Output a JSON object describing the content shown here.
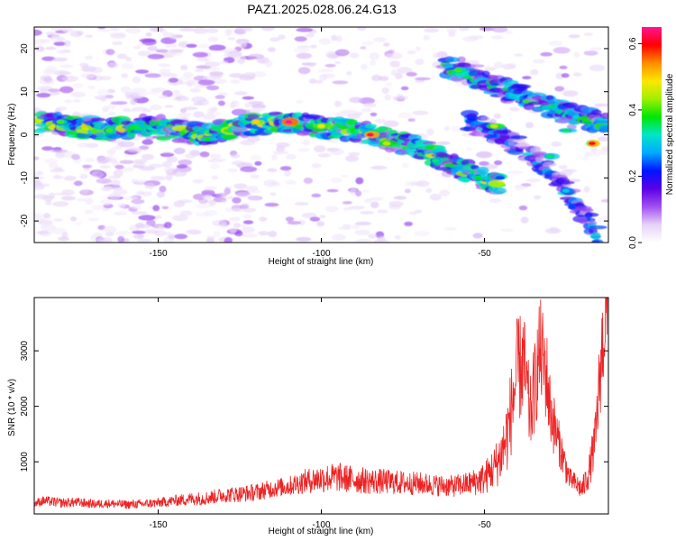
{
  "title": "PAZ1.2025.028.06.24.G13",
  "chart_data": [
    {
      "type": "heatmap",
      "xlabel": "Height of straight line (km)",
      "ylabel": "Frequency (Hz)",
      "xlim": [
        -188,
        -12
      ],
      "ylim": [
        -25,
        25
      ],
      "xticks": [
        -150,
        -100,
        -50
      ],
      "yticks": [
        -20,
        -10,
        0,
        10,
        20
      ],
      "colorbar": {
        "label": "Normalized spectral amplitude",
        "range": [
          0.0,
          0.65
        ],
        "ticks": [
          "0.0",
          "0.2",
          "0.4",
          "0.6"
        ],
        "tick_values": [
          0.0,
          0.2,
          0.4,
          0.6
        ],
        "colormap": [
          "#ffffff",
          "#e6d2f7",
          "#a050f0",
          "#5a00e6",
          "#0014ff",
          "#00aaff",
          "#00e6c8",
          "#00e600",
          "#a0f000",
          "#ffe600",
          "#ff8c00",
          "#ff0000",
          "#ff1493"
        ]
      },
      "ridges": [
        {
          "name": "main",
          "points": [
            [
              -186,
              3
            ],
            [
              -175,
              2
            ],
            [
              -165,
              1
            ],
            [
              -155,
              2
            ],
            [
              -145,
              1
            ],
            [
              -135,
              0
            ],
            [
              -125,
              2
            ],
            [
              -115,
              3
            ],
            [
              -100,
              2
            ],
            [
              -90,
              1
            ],
            [
              -80,
              -1
            ],
            [
              -70,
              -3
            ],
            [
              -60,
              -7
            ],
            [
              -50,
              -10
            ],
            [
              -45,
              -12
            ]
          ],
          "amp": 0.55
        },
        {
          "name": "upper",
          "points": [
            [
              -62,
              16
            ],
            [
              -55,
              14
            ],
            [
              -45,
              11
            ],
            [
              -35,
              8
            ],
            [
              -25,
              5
            ],
            [
              -15,
              3
            ],
            [
              -12,
              2
            ]
          ],
          "amp": 0.45
        },
        {
          "name": "lower",
          "points": [
            [
              -55,
              3
            ],
            [
              -45,
              0
            ],
            [
              -35,
              -5
            ],
            [
              -28,
              -10
            ],
            [
              -22,
              -16
            ],
            [
              -18,
              -20
            ],
            [
              -15,
              -24
            ]
          ],
          "amp": 0.35
        }
      ],
      "peaks": [
        {
          "x": -110,
          "y": 3,
          "amp": 0.65
        },
        {
          "x": -85,
          "y": 0,
          "amp": 0.62
        },
        {
          "x": -17,
          "y": -2,
          "amp": 0.6
        },
        {
          "x": -120,
          "y": 3,
          "amp": 0.5
        },
        {
          "x": -100,
          "y": 2,
          "amp": 0.48
        },
        {
          "x": -80,
          "y": -2,
          "amp": 0.45
        },
        {
          "x": -47,
          "y": 2,
          "amp": 0.45
        },
        {
          "x": -58,
          "y": 15,
          "amp": 0.4
        },
        {
          "x": -180,
          "y": 3,
          "amp": 0.4
        },
        {
          "x": -165,
          "y": 1,
          "amp": 0.4
        },
        {
          "x": -135,
          "y": -1,
          "amp": 0.38
        },
        {
          "x": -52,
          "y": -10,
          "amp": 0.38
        },
        {
          "x": -30,
          "y": -5,
          "amp": 0.35
        },
        {
          "x": -25,
          "y": 1,
          "amp": 0.35
        },
        {
          "x": -25,
          "y": -13,
          "amp": 0.3
        },
        {
          "x": -65,
          "y": -6,
          "amp": 0.35
        }
      ]
    },
    {
      "type": "line",
      "xlabel": "Height of straight line (km)",
      "ylabel": "SNR (10 * v/v)",
      "xlim": [
        -188,
        -12
      ],
      "ylim": [
        60,
        3960
      ],
      "xticks": [
        -150,
        -100,
        -50
      ],
      "yticks": [
        1000,
        2000,
        3000
      ],
      "series": [
        {
          "color": "#ee2222",
          "x": [
            -188,
            -185,
            -180,
            -175,
            -170,
            -165,
            -160,
            -155,
            -150,
            -145,
            -140,
            -135,
            -130,
            -125,
            -120,
            -115,
            -110,
            -105,
            -100,
            -95,
            -90,
            -85,
            -80,
            -75,
            -70,
            -65,
            -60,
            -55,
            -50,
            -47,
            -45,
            -43,
            -41,
            -40,
            -38,
            -36,
            -35,
            -33,
            -31,
            -30,
            -28,
            -27,
            -25,
            -24,
            -22,
            -20,
            -18,
            -16,
            -15,
            -14,
            -13,
            -12
          ],
          "values": [
            250,
            300,
            260,
            270,
            240,
            250,
            230,
            240,
            260,
            300,
            330,
            350,
            400,
            420,
            450,
            520,
            560,
            650,
            700,
            720,
            680,
            650,
            640,
            620,
            610,
            580,
            560,
            600,
            700,
            900,
            1100,
            1500,
            2200,
            2600,
            2800,
            1800,
            2200,
            3000,
            2600,
            2000,
            1500,
            1300,
            900,
            700,
            600,
            500,
            800,
            1400,
            2200,
            3000,
            3500,
            3900
          ],
          "noise": [
            80,
            90,
            90,
            90,
            80,
            80,
            80,
            80,
            90,
            100,
            120,
            130,
            140,
            150,
            160,
            170,
            180,
            220,
            260,
            270,
            250,
            240,
            230,
            220,
            210,
            200,
            200,
            220,
            300,
            400,
            500,
            700,
            900,
            1000,
            1000,
            700,
            800,
            1000,
            900,
            700,
            500,
            400,
            300,
            200,
            200,
            200,
            300,
            500,
            700,
            900,
            900,
            1000
          ]
        }
      ]
    }
  ]
}
